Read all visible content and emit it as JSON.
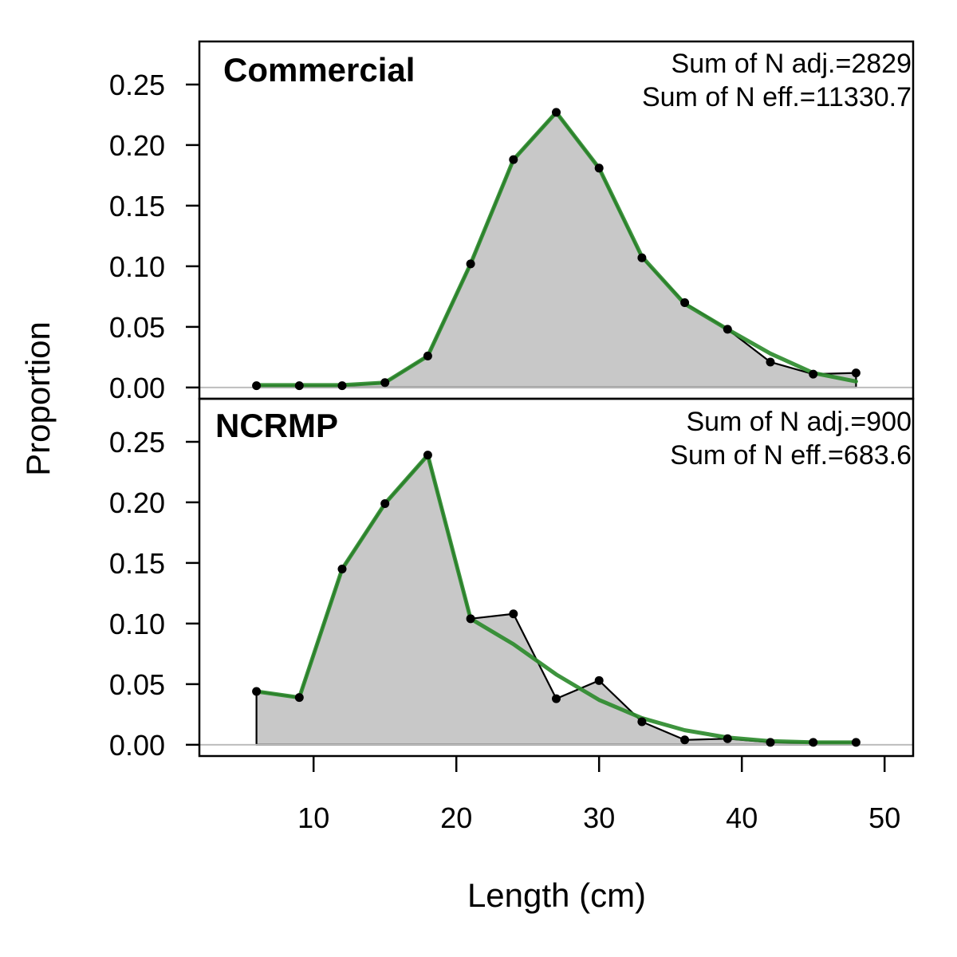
{
  "chart_data": {
    "type": "area",
    "xlabel": "Length (cm)",
    "ylabel": "Proportion",
    "xlim": [
      2,
      52
    ],
    "ylim": [
      -0.0093,
      0.2855
    ],
    "x_ticks": [
      10,
      20,
      30,
      40,
      50
    ],
    "y_ticks": [
      0.0,
      0.05,
      0.1,
      0.15,
      0.2,
      0.25
    ],
    "y_tick_labels": [
      "0.00",
      "0.05",
      "0.10",
      "0.15",
      "0.20",
      "0.25"
    ],
    "colors": {
      "observed_fill": "#c8c8c8",
      "observed_line": "#000000",
      "expected_line": "#2e8b2e",
      "zero_line": "#bdbdbd"
    },
    "panels": [
      {
        "title": "Commercial",
        "annotations": [
          "Sum of N adj.=2829",
          "Sum of N eff.=11330.7"
        ],
        "x": [
          6,
          9,
          12,
          15,
          18,
          21,
          24,
          27,
          30,
          33,
          36,
          39,
          42,
          45,
          48
        ],
        "observed": [
          0.0015,
          0.0015,
          0.0015,
          0.004,
          0.026,
          0.102,
          0.188,
          0.227,
          0.181,
          0.107,
          0.07,
          0.048,
          0.021,
          0.011,
          0.012
        ],
        "expected": [
          0.002,
          0.002,
          0.002,
          0.004,
          0.026,
          0.102,
          0.188,
          0.227,
          0.181,
          0.108,
          0.069,
          0.048,
          0.028,
          0.012,
          0.005
        ]
      },
      {
        "title": "NCRMP",
        "annotations": [
          "Sum of N adj.=900",
          "Sum of N eff.=683.6"
        ],
        "x": [
          6,
          9,
          12,
          15,
          18,
          21,
          24,
          27,
          30,
          33,
          36,
          39,
          42,
          45,
          48
        ],
        "observed": [
          0.044,
          0.039,
          0.145,
          0.199,
          0.239,
          0.104,
          0.108,
          0.038,
          0.053,
          0.019,
          0.004,
          0.005,
          0.002,
          0.002,
          0.002
        ],
        "expected": [
          0.044,
          0.039,
          0.145,
          0.199,
          0.239,
          0.104,
          0.083,
          0.058,
          0.037,
          0.022,
          0.012,
          0.006,
          0.003,
          0.002,
          0.002
        ]
      }
    ]
  }
}
